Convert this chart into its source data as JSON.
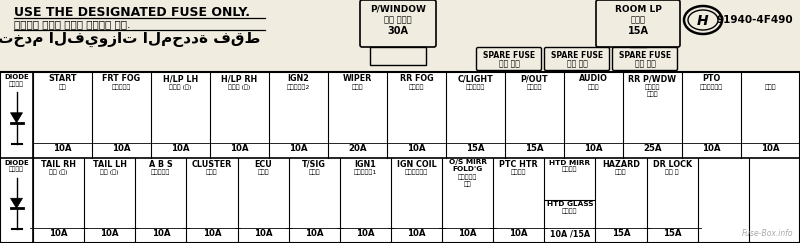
{
  "bg_color": "#f0ece0",
  "table_bg": "#ffffff",
  "title_line1": "USE THE DESIGNATED FUSE ONLY.",
  "title_line2": "정갩용량 이외의 하즈는 사용하지 말것.",
  "title_line3": "استخدم الفيوزات المحددة فقط",
  "part_number": "91940-4F490",
  "row1_fuses": [
    {
      "name": "START",
      "korean": "시동",
      "amp": "10A"
    },
    {
      "name": "FRT FOG",
      "korean": "전방안개등",
      "amp": "10A"
    },
    {
      "name": "H/LP LH",
      "korean": "전조등 (좌)",
      "amp": "10A"
    },
    {
      "name": "H/LP RH",
      "korean": "전조등 (우)",
      "amp": "10A"
    },
    {
      "name": "IGN2",
      "korean": "이그니셔늈2",
      "amp": "10A"
    },
    {
      "name": "WIPER",
      "korean": "와이퍼",
      "amp": "20A"
    },
    {
      "name": "RR FOG",
      "korean": "서트연선",
      "amp": "10A"
    },
    {
      "name": "C/LIGHT",
      "korean": "시그라이트",
      "amp": "15A"
    },
    {
      "name": "P/OUT",
      "korean": "파워아웃",
      "amp": "15A"
    },
    {
      "name": "AUDIO",
      "korean": "오디오",
      "amp": "10A"
    },
    {
      "name": "RR P/WDW",
      "korean": "리어파워\n윈도우",
      "amp": "25A"
    },
    {
      "name": "PTO",
      "korean": "동력인쒐장치",
      "amp": "10A"
    },
    {
      "name": "",
      "korean": "빉지용",
      "amp": "10A"
    }
  ],
  "row2_fuses": [
    {
      "name": "TAIL RH",
      "korean": "이등 (우)",
      "amp": "10A"
    },
    {
      "name": "TAIL LH",
      "korean": "이등 (좌)",
      "amp": "10A"
    },
    {
      "name": "A B S",
      "korean": "에이비에스",
      "amp": "10A"
    },
    {
      "name": "CLUSTER",
      "korean": "계기판",
      "amp": "10A"
    },
    {
      "name": "ECU",
      "korean": "이시유",
      "amp": "10A"
    },
    {
      "name": "T/SIG",
      "korean": "방향등",
      "amp": "10A"
    },
    {
      "name": "IGN1",
      "korean": "이그니셔늈1",
      "amp": "10A"
    },
    {
      "name": "IGN COIL",
      "korean": "이그니셔코일",
      "amp": "10A"
    },
    {
      "name": "O/S MIRR\nFOLD'G",
      "korean": "전동접이식\n이러",
      "amp": "10A"
    },
    {
      "name": "PTC HTR",
      "korean": "보조히터",
      "amp": "10A"
    },
    {
      "name": "HTD MIRR\nHTD GLASS",
      "korean": "열선미러\n열선유리",
      "amp": "10A /15A"
    },
    {
      "name": "HAZARD",
      "korean": "비상등",
      "amp": "15A"
    },
    {
      "name": "DR LOCK",
      "korean": "도어 록",
      "amp": "15A"
    },
    {
      "name": "",
      "korean": "",
      "amp": ""
    },
    {
      "name": "",
      "korean": "",
      "amp": ""
    }
  ]
}
